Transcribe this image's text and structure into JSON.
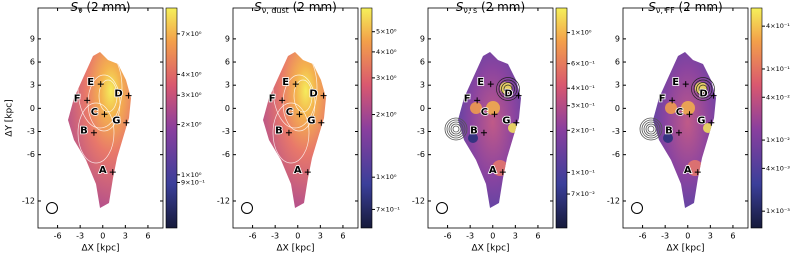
{
  "chart_data": [
    {
      "type": "map",
      "title": {
        "symbol": "S",
        "subscript": "ν",
        "rest": "(2 mm)"
      },
      "xlabel": "ΔX [kpc]",
      "ylabel": "ΔY [kpc]",
      "xlim": [
        -8.6,
        8
      ],
      "ylim": [
        -15.5,
        13
      ],
      "xticks": [
        -6,
        -3,
        0,
        3,
        6
      ],
      "yticks": [
        9,
        6,
        3,
        0,
        -3,
        -6,
        -12
      ],
      "regions": [
        {
          "label": "A",
          "x": 0,
          "y": -8
        },
        {
          "label": "B",
          "x": -2.5,
          "y": -2.9
        },
        {
          "label": "C",
          "x": -1.1,
          "y": -0.5
        },
        {
          "label": "D",
          "x": 2.1,
          "y": 1.9
        },
        {
          "label": "E",
          "x": -1.6,
          "y": 3.4
        },
        {
          "label": "F",
          "x": -3.4,
          "y": 1.3
        },
        {
          "label": "G",
          "x": 1.8,
          "y": -1.6
        }
      ],
      "colorbar": {
        "scale": "log",
        "clim": [
          0.48,
          10
        ],
        "ticks": [
          {
            "value": 7,
            "label": "7×10⁰"
          },
          {
            "value": 4,
            "label": "4×10⁰"
          },
          {
            "value": 3,
            "label": "3×10⁰"
          },
          {
            "value": 2,
            "label": "2×10⁰"
          },
          {
            "value": 1,
            "label": "1×10⁰"
          },
          {
            "value": 0.9,
            "label": "9×10⁻¹"
          }
        ]
      }
    },
    {
      "type": "map",
      "title": {
        "symbol": "S",
        "subscript": "ν, dust",
        "rest": "(2 mm)"
      },
      "xlabel": "ΔX [kpc]",
      "xlim": [
        -8.6,
        8
      ],
      "ylim": [
        -15.5,
        13
      ],
      "xticks": [
        -6,
        -3,
        0,
        3,
        6
      ],
      "yticks": [
        9,
        6,
        3,
        0,
        -3,
        -6,
        -12
      ],
      "regions": [
        {
          "label": "A",
          "x": 0,
          "y": -8
        },
        {
          "label": "B",
          "x": -2.5,
          "y": -2.9
        },
        {
          "label": "C",
          "x": -1.1,
          "y": -0.5
        },
        {
          "label": "D",
          "x": 2.1,
          "y": 1.9
        },
        {
          "label": "E",
          "x": -1.6,
          "y": 3.4
        },
        {
          "label": "F",
          "x": -3.4,
          "y": 1.3
        },
        {
          "label": "G",
          "x": 1.8,
          "y": -1.6
        }
      ],
      "colorbar": {
        "scale": "log",
        "clim": [
          0.57,
          6.5
        ],
        "ticks": [
          {
            "value": 5,
            "label": "5×10⁰"
          },
          {
            "value": 4,
            "label": "4×10⁰"
          },
          {
            "value": 3,
            "label": "3×10⁰"
          },
          {
            "value": 2,
            "label": "2×10⁰"
          },
          {
            "value": 1,
            "label": "1×10⁰"
          },
          {
            "value": 0.7,
            "label": "7×10⁻¹"
          }
        ]
      }
    },
    {
      "type": "map",
      "title": {
        "symbol": "S",
        "subscript": "ν, s",
        "rest": "(2 mm)"
      },
      "xlabel": "ΔX [kpc]",
      "xlim": [
        -8.6,
        8
      ],
      "ylim": [
        -15.5,
        13
      ],
      "xticks": [
        -6,
        -3,
        0,
        3,
        6
      ],
      "yticks": [
        9,
        6,
        3,
        0,
        -3,
        -6,
        -12
      ],
      "regions": [
        {
          "label": "A",
          "x": 0,
          "y": -8
        },
        {
          "label": "B",
          "x": -2.5,
          "y": -2.9
        },
        {
          "label": "C",
          "x": -1.1,
          "y": -0.5
        },
        {
          "label": "D",
          "x": 2.1,
          "y": 1.9
        },
        {
          "label": "E",
          "x": -1.6,
          "y": 3.4
        },
        {
          "label": "F",
          "x": -3.4,
          "y": 1.3
        },
        {
          "label": "G",
          "x": 1.8,
          "y": -1.6
        }
      ],
      "colorbar": {
        "scale": "log",
        "clim": [
          0.04,
          1.5
        ],
        "ticks": [
          {
            "value": 1,
            "label": "1×10⁰"
          },
          {
            "value": 0.6,
            "label": "6×10⁻¹"
          },
          {
            "value": 0.4,
            "label": "4×10⁻¹"
          },
          {
            "value": 0.3,
            "label": "3×10⁻¹"
          },
          {
            "value": 0.2,
            "label": "2×10⁻¹"
          },
          {
            "value": 0.1,
            "label": "1×10⁻¹"
          },
          {
            "value": 0.07,
            "label": "7×10⁻²"
          }
        ]
      }
    },
    {
      "type": "map",
      "title": {
        "symbol": "S",
        "subscript": "ν, FF",
        "rest": "(2 mm)"
      },
      "xlabel": "ΔX [kpc]",
      "xlim": [
        -8.6,
        8
      ],
      "ylim": [
        -15.5,
        13
      ],
      "xticks": [
        -6,
        -3,
        0,
        3,
        6
      ],
      "yticks": [
        9,
        6,
        3,
        0,
        -3,
        -6,
        -12
      ],
      "regions": [
        {
          "label": "A",
          "x": 0,
          "y": -8
        },
        {
          "label": "B",
          "x": -2.5,
          "y": -2.9
        },
        {
          "label": "C",
          "x": -1.1,
          "y": -0.5
        },
        {
          "label": "D",
          "x": 2.1,
          "y": 1.9
        },
        {
          "label": "E",
          "x": -1.6,
          "y": 3.4
        },
        {
          "label": "F",
          "x": -3.4,
          "y": 1.3
        },
        {
          "label": "G",
          "x": 1.8,
          "y": -1.6
        }
      ],
      "colorbar": {
        "scale": "log",
        "clim": [
          0.00058,
          0.72
        ],
        "ticks": [
          {
            "value": 0.4,
            "label": "4×10⁻¹"
          },
          {
            "value": 0.1,
            "label": "1×10⁻¹"
          },
          {
            "value": 0.04,
            "label": "4×10⁻²"
          },
          {
            "value": 0.01,
            "label": "1×10⁻²"
          },
          {
            "value": 0.004,
            "label": "4×10⁻³"
          },
          {
            "value": 0.001,
            "label": "1×10⁻³"
          }
        ]
      }
    }
  ]
}
